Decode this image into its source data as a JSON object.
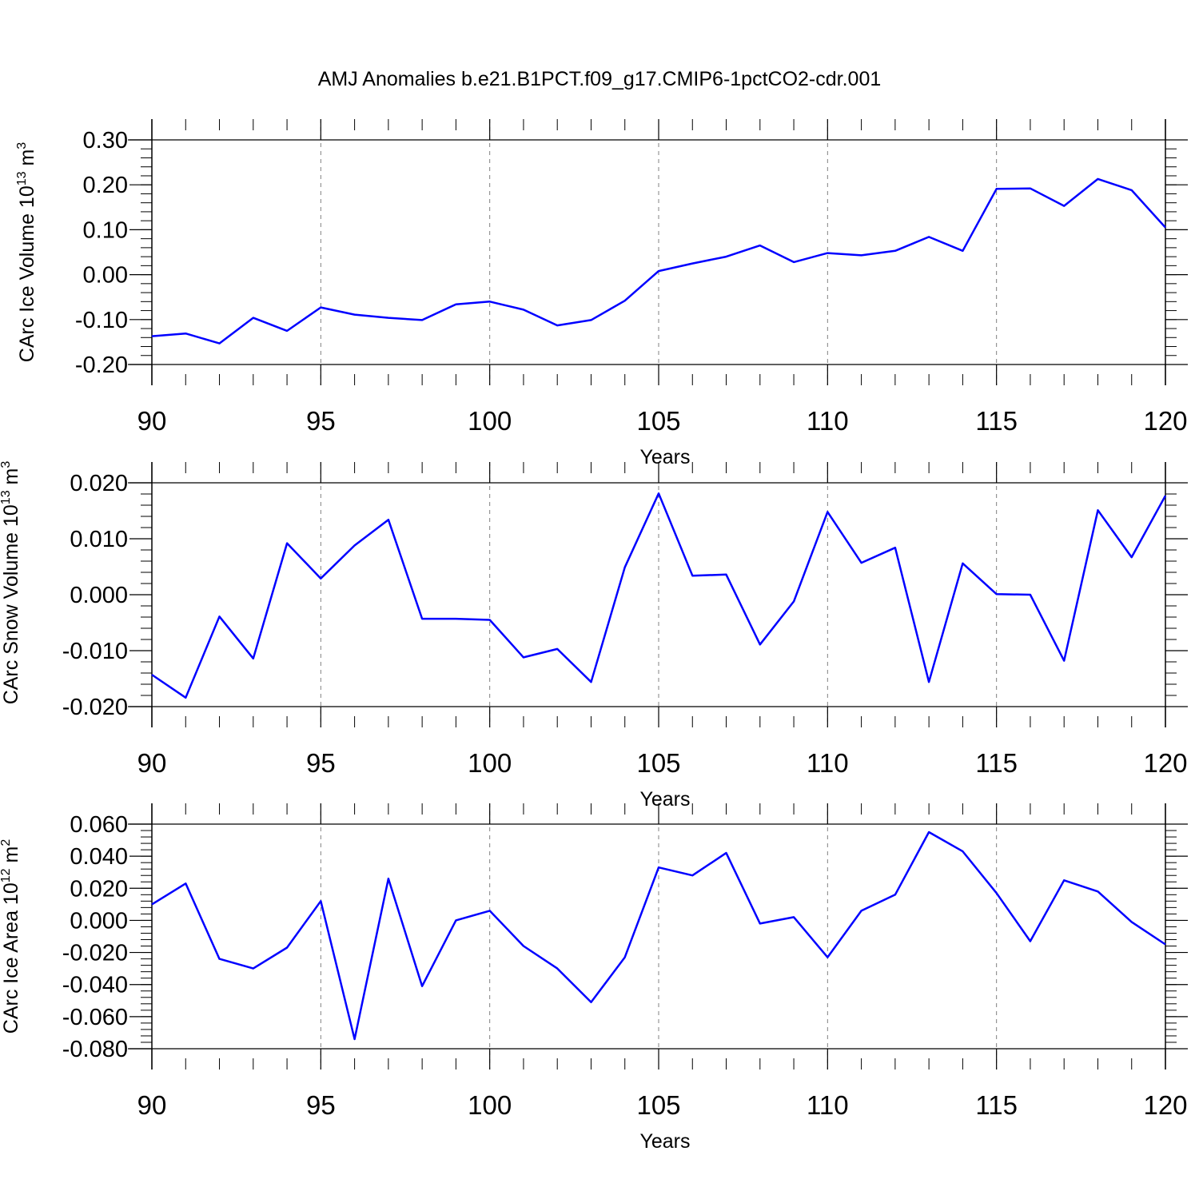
{
  "title": "AMJ Anomalies b.e21.B1PCT.f09_g17.CMIP6-1pctCO2-cdr.001",
  "colors": {
    "series": "#0000ff",
    "axis": "#000000",
    "grid": "#808080"
  },
  "chart_data": [
    {
      "type": "line",
      "xlabel": "Years",
      "ylabel": "CArc Ice Volume 10",
      "ylabel_sup": "13",
      "ylabel_unit": " m",
      "ylabel_unit_sup": "3",
      "xlim": [
        90,
        120
      ],
      "ylim": [
        -0.2,
        0.3
      ],
      "xticks": [
        90,
        95,
        100,
        105,
        110,
        115,
        120
      ],
      "xtick_labels": [
        "90",
        "95",
        "100",
        "105",
        "110",
        "115",
        "120"
      ],
      "yticks": [
        -0.2,
        -0.1,
        0.0,
        0.1,
        0.2,
        0.3
      ],
      "ytick_labels": [
        "-0.20",
        "-0.10",
        "0.00",
        "0.10",
        "0.20",
        "0.30"
      ],
      "grid": "vertical dashed at major x ticks",
      "series": [
        {
          "x": [
            90,
            91,
            92,
            93,
            94,
            95,
            96,
            97,
            98,
            99,
            100,
            101,
            102,
            103,
            104,
            105,
            106,
            107,
            108,
            109,
            110,
            111,
            112,
            113,
            114,
            115,
            116,
            117,
            118,
            119,
            120
          ],
          "values": [
            -0.137,
            -0.131,
            -0.153,
            -0.096,
            -0.125,
            -0.073,
            -0.089,
            -0.096,
            -0.101,
            -0.066,
            -0.06,
            -0.078,
            -0.113,
            -0.101,
            -0.058,
            0.008,
            0.025,
            0.04,
            0.065,
            0.028,
            0.048,
            0.043,
            0.053,
            0.084,
            0.053,
            0.191,
            0.192,
            0.153,
            0.213,
            0.188,
            0.105
          ]
        }
      ]
    },
    {
      "type": "line",
      "xlabel": "Years",
      "ylabel": "CArc Snow Volume 10",
      "ylabel_sup": "13",
      "ylabel_unit": " m",
      "ylabel_unit_sup": "3",
      "xlim": [
        90,
        120
      ],
      "ylim": [
        -0.02,
        0.02
      ],
      "xticks": [
        90,
        95,
        100,
        105,
        110,
        115,
        120
      ],
      "xtick_labels": [
        "90",
        "95",
        "100",
        "105",
        "110",
        "115",
        "120"
      ],
      "yticks": [
        -0.02,
        -0.01,
        0.0,
        0.01,
        0.02
      ],
      "ytick_labels": [
        "-0.020",
        "-0.010",
        "0.000",
        "0.010",
        "0.020"
      ],
      "grid": "vertical dashed at major x ticks",
      "series": [
        {
          "x": [
            90,
            91,
            92,
            93,
            94,
            95,
            96,
            97,
            98,
            99,
            100,
            101,
            102,
            103,
            104,
            105,
            106,
            107,
            108,
            109,
            110,
            111,
            112,
            113,
            114,
            115,
            116,
            117,
            118,
            119,
            120
          ],
          "values": [
            -0.0143,
            -0.0184,
            -0.0039,
            -0.0114,
            0.0092,
            0.0029,
            0.0088,
            0.0134,
            -0.0043,
            -0.0043,
            -0.0045,
            -0.0112,
            -0.0097,
            -0.0156,
            0.0049,
            0.0181,
            0.0034,
            0.0036,
            -0.0089,
            -0.0012,
            0.0148,
            0.0057,
            0.0084,
            -0.0156,
            0.0056,
            0.0001,
            0.0,
            -0.0118,
            0.0151,
            0.0067,
            0.0177
          ]
        }
      ]
    },
    {
      "type": "line",
      "xlabel": "Years",
      "ylabel": "CArc Ice Area 10",
      "ylabel_sup": "12",
      "ylabel_unit": " m",
      "ylabel_unit_sup": "2",
      "xlim": [
        90,
        120
      ],
      "ylim": [
        -0.08,
        0.06
      ],
      "xticks": [
        90,
        95,
        100,
        105,
        110,
        115,
        120
      ],
      "xtick_labels": [
        "90",
        "95",
        "100",
        "105",
        "110",
        "115",
        "120"
      ],
      "yticks": [
        -0.08,
        -0.06,
        -0.04,
        -0.02,
        0.0,
        0.02,
        0.04,
        0.06
      ],
      "ytick_labels": [
        "-0.080",
        "-0.060",
        "-0.040",
        "-0.020",
        "0.000",
        "0.020",
        "0.040",
        "0.060"
      ],
      "grid": "vertical dashed at major x ticks",
      "series": [
        {
          "x": [
            90,
            91,
            92,
            93,
            94,
            95,
            96,
            97,
            98,
            99,
            100,
            101,
            102,
            103,
            104,
            105,
            106,
            107,
            108,
            109,
            110,
            111,
            112,
            113,
            114,
            115,
            116,
            117,
            118,
            119,
            120
          ],
          "values": [
            0.01,
            0.023,
            -0.024,
            -0.03,
            -0.017,
            0.012,
            -0.074,
            0.026,
            -0.041,
            0.0,
            0.006,
            -0.016,
            -0.03,
            -0.051,
            -0.023,
            0.033,
            0.028,
            0.042,
            -0.002,
            0.002,
            -0.023,
            0.006,
            0.016,
            0.055,
            0.043,
            0.017,
            -0.013,
            0.025,
            0.018,
            -0.001,
            -0.015
          ]
        }
      ]
    }
  ]
}
